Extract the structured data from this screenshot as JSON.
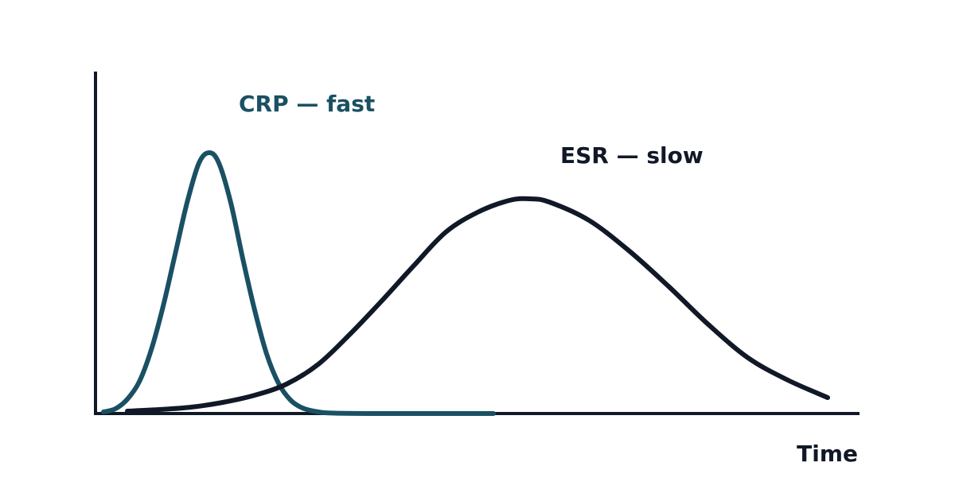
{
  "chart_data": {
    "type": "line",
    "xlabel": "Time",
    "ylabel": "",
    "xlim": [
      0,
      960
    ],
    "ylim": [
      0,
      330
    ],
    "grid": false,
    "colors": {
      "axis": "#111827",
      "crp": "#1a5063",
      "esr": "#111827"
    },
    "series": [
      {
        "name": "CRP — fast",
        "color": "#1a5063",
        "points": [
          [
            10,
            2
          ],
          [
            25,
            6
          ],
          [
            40,
            18
          ],
          [
            55,
            40
          ],
          [
            70,
            80
          ],
          [
            85,
            135
          ],
          [
            100,
            200
          ],
          [
            115,
            265
          ],
          [
            130,
            315
          ],
          [
            143,
            328
          ],
          [
            155,
            315
          ],
          [
            170,
            265
          ],
          [
            185,
            195
          ],
          [
            200,
            130
          ],
          [
            215,
            75
          ],
          [
            230,
            38
          ],
          [
            245,
            17
          ],
          [
            260,
            7
          ],
          [
            280,
            2
          ],
          [
            300,
            0.5
          ],
          [
            350,
            0
          ],
          [
            420,
            0
          ],
          [
            500,
            0
          ]
        ]
      },
      {
        "name": "ESR — slow",
        "color": "#111827",
        "points": [
          [
            40,
            3
          ],
          [
            80,
            5
          ],
          [
            120,
            8
          ],
          [
            160,
            14
          ],
          [
            200,
            23
          ],
          [
            240,
            37
          ],
          [
            280,
            62
          ],
          [
            320,
            100
          ],
          [
            360,
            142
          ],
          [
            400,
            186
          ],
          [
            440,
            228
          ],
          [
            480,
            253
          ],
          [
            520,
            268
          ],
          [
            545,
            270
          ],
          [
            570,
            266
          ],
          [
            620,
            243
          ],
          [
            670,
            205
          ],
          [
            720,
            160
          ],
          [
            770,
            112
          ],
          [
            820,
            70
          ],
          [
            870,
            42
          ],
          [
            920,
            20
          ]
        ]
      }
    ]
  }
}
